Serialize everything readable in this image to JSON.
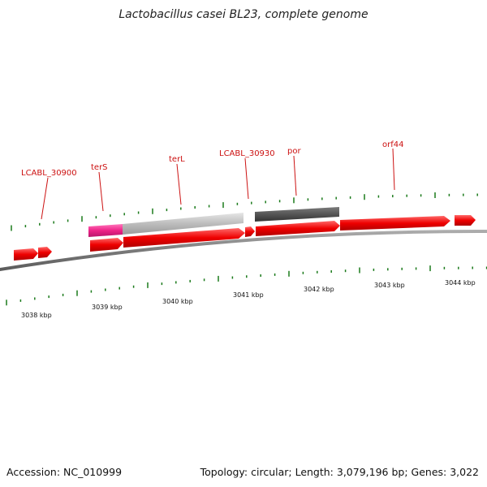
{
  "title": "Lactobacillus casei BL23, complete genome",
  "footer": {
    "accession": "Accession: NC_010999",
    "summary": "Topology: circular; Length: 3,079,196 bp; Genes: 3,022"
  },
  "colors": {
    "cds": "#ee0000",
    "terS": "#ee2288",
    "terL": "#bdbdbd",
    "por": "#555555",
    "backbone": "#808080",
    "tick": "#1a7a1a",
    "label": "#cc1111"
  },
  "axis_labels": [
    "3038 kbp",
    "3039 kbp",
    "3040 kbp",
    "3041 kbp",
    "3042 kbp",
    "3043 kbp",
    "3044 kbp"
  ],
  "gene_labels": [
    "LCABL_30900",
    "terS",
    "terL",
    "LCABL_30930",
    "por",
    "orf44"
  ]
}
